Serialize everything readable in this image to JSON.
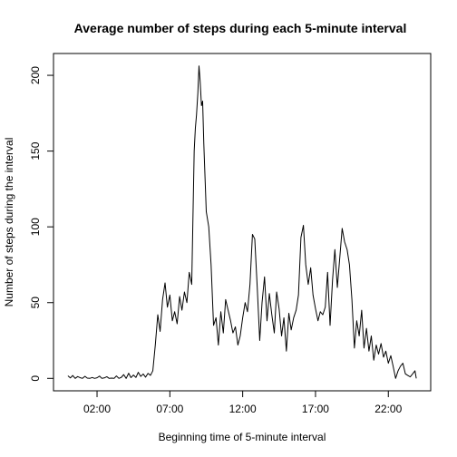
{
  "chart_data": {
    "type": "line",
    "title": "Average number of steps during each 5-minute interval",
    "xlabel": "Beginning time of 5-minute interval",
    "ylabel": "Number of steps during the interval",
    "x_unit": "hours",
    "xlim": [
      -0.99,
      24.91
    ],
    "ylim": [
      -8.2,
      214.4
    ],
    "x_ticks": [
      {
        "value": 2,
        "label": "02:00"
      },
      {
        "value": 7,
        "label": "07:00"
      },
      {
        "value": 12,
        "label": "12:00"
      },
      {
        "value": 17,
        "label": "17:00"
      },
      {
        "value": 22,
        "label": "22:00"
      }
    ],
    "y_ticks": [
      {
        "value": 0,
        "label": "0"
      },
      {
        "value": 50,
        "label": "50"
      },
      {
        "value": 100,
        "label": "100"
      },
      {
        "value": 150,
        "label": "150"
      },
      {
        "value": 200,
        "label": "200"
      }
    ],
    "grid": false,
    "line_color": "#000000",
    "series": [
      {
        "values": [
          [
            0.0,
            1.7
          ],
          [
            0.17,
            0.3
          ],
          [
            0.33,
            1.9
          ],
          [
            0.5,
            0.0
          ],
          [
            0.67,
            1.2
          ],
          [
            0.83,
            0.5
          ],
          [
            1.0,
            0.0
          ],
          [
            1.17,
            1.4
          ],
          [
            1.33,
            0.2
          ],
          [
            1.5,
            0.0
          ],
          [
            1.67,
            0.6
          ],
          [
            1.83,
            0.0
          ],
          [
            2.0,
            0.4
          ],
          [
            2.17,
            1.5
          ],
          [
            2.33,
            0.0
          ],
          [
            2.5,
            0.3
          ],
          [
            2.67,
            1.1
          ],
          [
            2.83,
            0.0
          ],
          [
            3.0,
            0.2
          ],
          [
            3.17,
            0.0
          ],
          [
            3.33,
            1.6
          ],
          [
            3.5,
            0.0
          ],
          [
            3.67,
            0.7
          ],
          [
            3.83,
            2.5
          ],
          [
            4.0,
            0.0
          ],
          [
            4.17,
            3.4
          ],
          [
            4.33,
            0.5
          ],
          [
            4.5,
            2.2
          ],
          [
            4.67,
            0.6
          ],
          [
            4.83,
            4.0
          ],
          [
            5.0,
            1.3
          ],
          [
            5.17,
            2.9
          ],
          [
            5.33,
            0.8
          ],
          [
            5.5,
            3.3
          ],
          [
            5.67,
            2.0
          ],
          [
            5.83,
            5.0
          ],
          [
            6.0,
            22.0
          ],
          [
            6.17,
            42.0
          ],
          [
            6.33,
            31.0
          ],
          [
            6.5,
            52.0
          ],
          [
            6.67,
            63.0
          ],
          [
            6.83,
            47.0
          ],
          [
            7.0,
            55.0
          ],
          [
            7.17,
            38.0
          ],
          [
            7.33,
            44.0
          ],
          [
            7.5,
            36.0
          ],
          [
            7.67,
            54.0
          ],
          [
            7.83,
            45.0
          ],
          [
            8.0,
            57.0
          ],
          [
            8.17,
            50.0
          ],
          [
            8.33,
            70.0
          ],
          [
            8.5,
            62.0
          ],
          [
            8.67,
            150.0
          ],
          [
            8.75,
            165.0
          ],
          [
            8.83,
            174.0
          ],
          [
            8.92,
            188.0
          ],
          [
            9.0,
            206.2
          ],
          [
            9.08,
            196.0
          ],
          [
            9.17,
            180.0
          ],
          [
            9.25,
            183.0
          ],
          [
            9.33,
            155.0
          ],
          [
            9.5,
            110.0
          ],
          [
            9.67,
            100.0
          ],
          [
            9.83,
            75.0
          ],
          [
            10.0,
            35.0
          ],
          [
            10.17,
            40.0
          ],
          [
            10.33,
            22.0
          ],
          [
            10.5,
            44.0
          ],
          [
            10.67,
            30.0
          ],
          [
            10.83,
            52.0
          ],
          [
            11.0,
            45.0
          ],
          [
            11.17,
            38.0
          ],
          [
            11.33,
            30.0
          ],
          [
            11.5,
            34.0
          ],
          [
            11.67,
            22.0
          ],
          [
            11.83,
            28.0
          ],
          [
            12.0,
            40.0
          ],
          [
            12.17,
            50.0
          ],
          [
            12.33,
            44.0
          ],
          [
            12.5,
            62.0
          ],
          [
            12.67,
            95.0
          ],
          [
            12.83,
            92.0
          ],
          [
            13.0,
            60.0
          ],
          [
            13.17,
            25.0
          ],
          [
            13.33,
            50.0
          ],
          [
            13.5,
            67.0
          ],
          [
            13.67,
            38.0
          ],
          [
            13.83,
            56.0
          ],
          [
            14.0,
            42.0
          ],
          [
            14.17,
            30.0
          ],
          [
            14.33,
            57.0
          ],
          [
            14.5,
            46.0
          ],
          [
            14.67,
            28.0
          ],
          [
            14.83,
            40.0
          ],
          [
            15.0,
            18.0
          ],
          [
            15.17,
            43.0
          ],
          [
            15.33,
            32.0
          ],
          [
            15.5,
            40.0
          ],
          [
            15.67,
            45.0
          ],
          [
            15.83,
            55.0
          ],
          [
            16.0,
            93.0
          ],
          [
            16.17,
            101.0
          ],
          [
            16.33,
            75.0
          ],
          [
            16.5,
            62.0
          ],
          [
            16.67,
            73.0
          ],
          [
            16.83,
            55.0
          ],
          [
            17.0,
            46.0
          ],
          [
            17.17,
            38.0
          ],
          [
            17.33,
            44.0
          ],
          [
            17.5,
            42.0
          ],
          [
            17.67,
            47.0
          ],
          [
            17.83,
            70.0
          ],
          [
            18.0,
            35.0
          ],
          [
            18.17,
            65.0
          ],
          [
            18.33,
            85.0
          ],
          [
            18.5,
            60.0
          ],
          [
            18.67,
            80.0
          ],
          [
            18.83,
            99.0
          ],
          [
            19.0,
            90.0
          ],
          [
            19.17,
            85.0
          ],
          [
            19.33,
            75.0
          ],
          [
            19.5,
            52.0
          ],
          [
            19.67,
            20.0
          ],
          [
            19.83,
            38.0
          ],
          [
            20.0,
            28.0
          ],
          [
            20.17,
            45.0
          ],
          [
            20.33,
            20.0
          ],
          [
            20.5,
            33.0
          ],
          [
            20.67,
            18.0
          ],
          [
            20.83,
            28.0
          ],
          [
            21.0,
            12.0
          ],
          [
            21.17,
            22.0
          ],
          [
            21.33,
            16.0
          ],
          [
            21.5,
            23.0
          ],
          [
            21.67,
            14.0
          ],
          [
            21.83,
            18.0
          ],
          [
            22.0,
            10.0
          ],
          [
            22.17,
            15.0
          ],
          [
            22.33,
            8.0
          ],
          [
            22.5,
            0.0
          ],
          [
            22.67,
            5.0
          ],
          [
            22.83,
            8.0
          ],
          [
            23.0,
            10.0
          ],
          [
            23.17,
            3.0
          ],
          [
            23.33,
            2.0
          ],
          [
            23.5,
            1.0
          ],
          [
            23.67,
            3.0
          ],
          [
            23.83,
            5.0
          ],
          [
            23.92,
            0.0
          ]
        ]
      }
    ]
  }
}
